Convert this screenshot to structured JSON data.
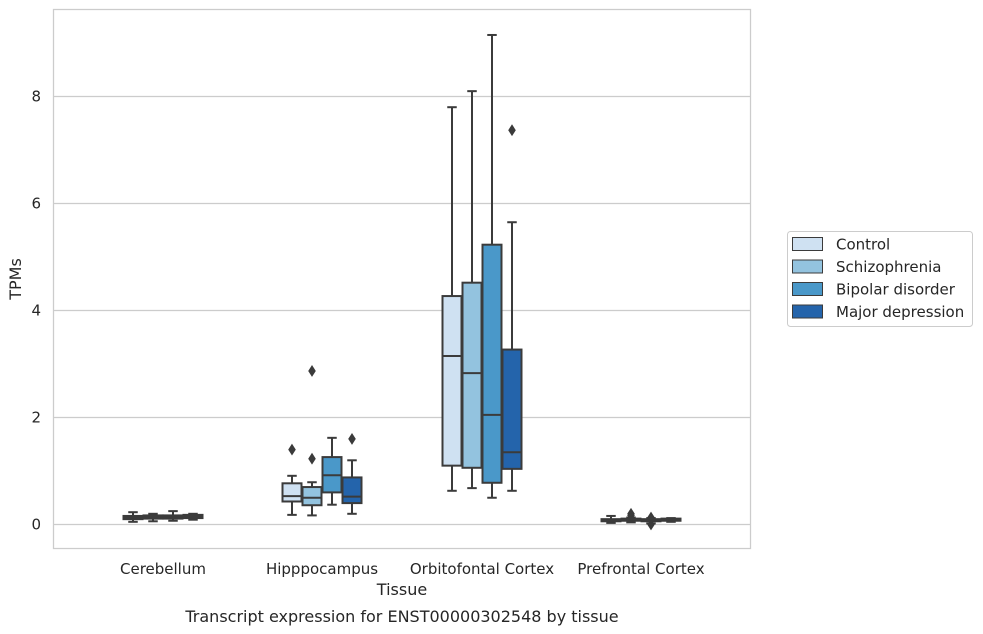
{
  "chart_data": {
    "type": "box",
    "title": "Transcript expression for ENST00000302548 by tissue",
    "xlabel": "Tissue",
    "ylabel": "TPMs",
    "ylim": [
      -0.43,
      9.7
    ],
    "yticks": [
      0,
      2,
      4,
      6,
      8
    ],
    "grid": true,
    "legend_position": "right",
    "categories": [
      "Cerebellum",
      "Hipppocampus",
      "Orbitofontal Cortex",
      "Prefrontal Cortex"
    ],
    "series": [
      {
        "name": "Control",
        "color": "#cfe1f2",
        "boxes": [
          {
            "whisker_low": 0.05,
            "q1": 0.1,
            "median": 0.13,
            "q3": 0.16,
            "whisker_high": 0.23,
            "outliers": []
          },
          {
            "whisker_low": 0.18,
            "q1": 0.43,
            "median": 0.53,
            "q3": 0.77,
            "whisker_high": 0.91,
            "outliers": [
              1.4
            ]
          },
          {
            "whisker_low": 0.63,
            "q1": 1.1,
            "median": 3.15,
            "q3": 4.27,
            "whisker_high": 7.8,
            "outliers": []
          },
          {
            "whisker_low": 0.03,
            "q1": 0.06,
            "median": 0.08,
            "q3": 0.1,
            "whisker_high": 0.16,
            "outliers": []
          }
        ]
      },
      {
        "name": "Schizophrenia",
        "color": "#93c3df",
        "boxes": [
          {
            "whisker_low": 0.06,
            "q1": 0.11,
            "median": 0.14,
            "q3": 0.17,
            "whisker_high": 0.2,
            "outliers": []
          },
          {
            "whisker_low": 0.17,
            "q1": 0.36,
            "median": 0.5,
            "q3": 0.7,
            "whisker_high": 0.79,
            "outliers": [
              1.23,
              2.87
            ]
          },
          {
            "whisker_low": 0.68,
            "q1": 1.06,
            "median": 2.83,
            "q3": 4.52,
            "whisker_high": 8.1,
            "outliers": []
          },
          {
            "whisker_low": 0.04,
            "q1": 0.07,
            "median": 0.09,
            "q3": 0.11,
            "whisker_high": 0.13,
            "outliers": [
              0.17,
              0.2
            ]
          }
        ]
      },
      {
        "name": "Bipolar disorder",
        "color": "#4a98c9",
        "boxes": [
          {
            "whisker_low": 0.07,
            "q1": 0.11,
            "median": 0.14,
            "q3": 0.17,
            "whisker_high": 0.25,
            "outliers": []
          },
          {
            "whisker_low": 0.37,
            "q1": 0.6,
            "median": 0.92,
            "q3": 1.26,
            "whisker_high": 1.62,
            "outliers": []
          },
          {
            "whisker_low": 0.5,
            "q1": 0.78,
            "median": 2.05,
            "q3": 5.23,
            "whisker_high": 9.15,
            "outliers": []
          },
          {
            "whisker_low": 0.02,
            "q1": 0.06,
            "median": 0.08,
            "q3": 0.1,
            "whisker_high": 0.12,
            "outliers": [
              0.0,
              0.13
            ]
          }
        ]
      },
      {
        "name": "Major depression",
        "color": "#2464ab",
        "boxes": [
          {
            "whisker_low": 0.09,
            "q1": 0.12,
            "median": 0.15,
            "q3": 0.18,
            "whisker_high": 0.2,
            "outliers": []
          },
          {
            "whisker_low": 0.2,
            "q1": 0.4,
            "median": 0.52,
            "q3": 0.88,
            "whisker_high": 1.2,
            "outliers": [
              1.6
            ]
          },
          {
            "whisker_low": 0.63,
            "q1": 1.04,
            "median": 1.35,
            "q3": 3.27,
            "whisker_high": 5.65,
            "outliers": [
              7.37
            ]
          },
          {
            "whisker_low": 0.05,
            "q1": 0.07,
            "median": 0.09,
            "q3": 0.11,
            "whisker_high": 0.12,
            "outliers": []
          }
        ]
      }
    ]
  }
}
